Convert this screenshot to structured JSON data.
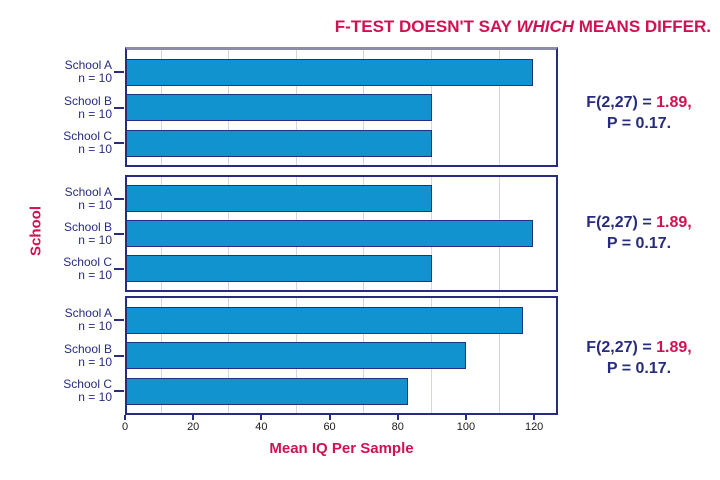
{
  "title": {
    "prefix": "F-TEST DOESN'T SAY ",
    "emphasis": "WHICH",
    "suffix": " MEANS DIFFER."
  },
  "axes": {
    "y_label": "School",
    "x_label": "Mean IQ Per Sample"
  },
  "colors": {
    "crimson": "#D01253",
    "navy": "#272C7F",
    "bar_fill": "#1193CF",
    "bar_border": "#233280",
    "gridline": "#D6D6E0",
    "panel_top_gray": "#8D8DA6",
    "tick_text": "#1C1C1C"
  },
  "chart_data": {
    "type": "bar",
    "orientation": "horizontal",
    "x_axis": {
      "max": 127,
      "ticks": [
        0,
        20,
        40,
        60,
        80,
        100,
        120
      ],
      "gridlines": [
        10,
        30,
        50,
        70,
        90,
        110
      ]
    },
    "xlabel": "Mean IQ Per Sample",
    "ylabel": "School",
    "panels": [
      {
        "bars": [
          {
            "label": "School A",
            "sublabel": "n = 10",
            "value": 120
          },
          {
            "label": "School B",
            "sublabel": "n = 10",
            "value": 90
          },
          {
            "label": "School C",
            "sublabel": "n = 10",
            "value": 90
          }
        ],
        "annotation": {
          "f_label": "F(2,27) = ",
          "f_value": "1.89,",
          "p_line": "P = 0.17."
        }
      },
      {
        "bars": [
          {
            "label": "School A",
            "sublabel": "n = 10",
            "value": 90
          },
          {
            "label": "School B",
            "sublabel": "n = 10",
            "value": 120
          },
          {
            "label": "School C",
            "sublabel": "n = 10",
            "value": 90
          }
        ],
        "annotation": {
          "f_label": "F(2,27) = ",
          "f_value": "1.89,",
          "p_line": "P = 0.17."
        }
      },
      {
        "bars": [
          {
            "label": "School A",
            "sublabel": "n = 10",
            "value": 117
          },
          {
            "label": "School B",
            "sublabel": "n = 10",
            "value": 100
          },
          {
            "label": "School C",
            "sublabel": "n = 10",
            "value": 83
          }
        ],
        "annotation": {
          "f_label": "F(2,27) = ",
          "f_value": "1.89,",
          "p_line": "P = 0.17."
        }
      }
    ]
  }
}
